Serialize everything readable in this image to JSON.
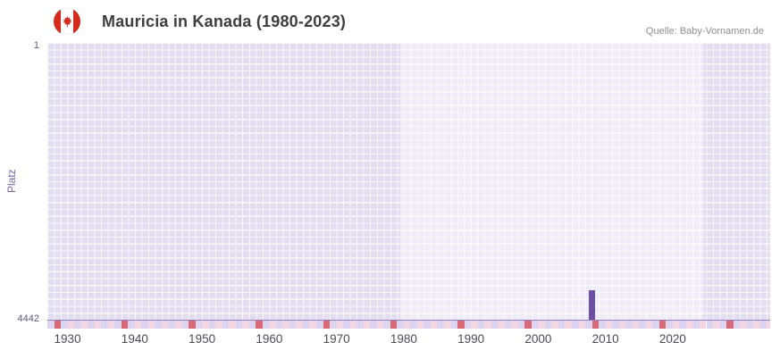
{
  "header": {
    "title": "Mauricia in Kanada (1980-2023)",
    "source": "Quelle: Baby-Vornamen.de",
    "flag": "canada-flag-icon"
  },
  "chart_data": {
    "type": "bar",
    "title": "Mauricia in Kanada (1980-2023)",
    "xlabel": "",
    "ylabel": "Platz",
    "y_axis": {
      "top_label": "1",
      "bottom_label": "4442",
      "min": 1,
      "max": 4442,
      "inverted": true
    },
    "x_domain": [
      1927,
      2034.5
    ],
    "x_ticks": [
      1930,
      1940,
      1950,
      1960,
      1970,
      1980,
      1990,
      2000,
      2010,
      2020
    ],
    "highlight_range": [
      1979.5,
      2024.5
    ],
    "points": [
      {
        "year": 2008,
        "rank": 3970
      }
    ],
    "bar_color": "#6f4fa0",
    "legend": "none",
    "grid": "fine white mesh, one column per year"
  },
  "theme": {
    "plot_bg_outer": "#e2def0",
    "plot_bg_inner": "#efecf8",
    "grid_line": "rgba(255,255,255,0.72)",
    "axis_line": "#8f7fc5",
    "strip_red": "#d96a75",
    "strip_pink": "#f3d6e4",
    "strip_lavender": "#dcd4ee",
    "accent_text": "#7468a8",
    "flag_red": "#d52b1e"
  }
}
